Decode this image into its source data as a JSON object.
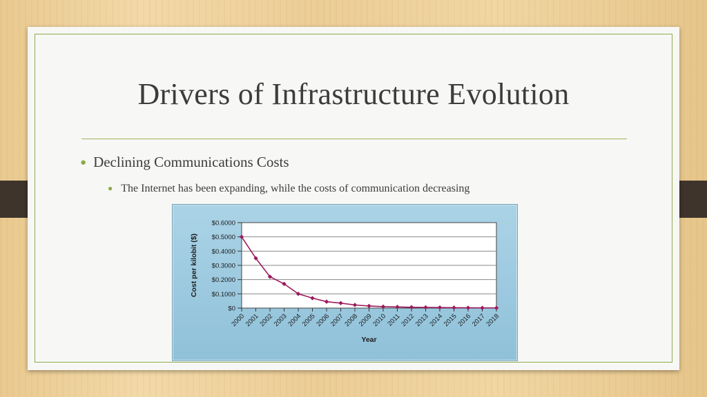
{
  "slide": {
    "title": "Drivers of Infrastructure Evolution",
    "bullets": [
      {
        "text": "Declining Communications Costs",
        "level": 1
      },
      {
        "text": "The Internet has been expanding, while the costs of communication decreasing",
        "level": 2
      }
    ]
  },
  "colors": {
    "accent": "#8daa4b",
    "series": "#9c1a5c",
    "chart_bg": "#9ccbe0"
  },
  "chart_data": {
    "type": "line",
    "title": "",
    "xlabel": "Year",
    "ylabel": "Cost per kilobit ($)",
    "x": [
      2000,
      2001,
      2002,
      2003,
      2004,
      2005,
      2006,
      2007,
      2008,
      2009,
      2010,
      2011,
      2012,
      2013,
      2014,
      2015,
      2016,
      2017,
      2018
    ],
    "x_tick_labels": [
      "2000",
      "2001",
      "2002",
      "2003",
      "2004",
      "2005",
      "2006",
      "2007",
      "2008",
      "2009",
      "2010",
      "2011",
      "2012",
      "2013",
      "2014",
      "2015",
      "2016",
      "2017",
      "2018"
    ],
    "series": [
      {
        "values": [
          0.5,
          0.35,
          0.22,
          0.17,
          0.1,
          0.07,
          0.045,
          0.035,
          0.022,
          0.015,
          0.01,
          0.008,
          0.006,
          0.005,
          0.004,
          0.003,
          0.002,
          0.0015,
          0.001
        ]
      }
    ],
    "y_ticks": [
      0,
      0.1,
      0.2,
      0.3,
      0.4,
      0.5,
      0.6
    ],
    "y_tick_labels": [
      "$0",
      "$0.1000",
      "$0.2000",
      "$0.3000",
      "$0.4000",
      "$0.5000",
      "$0.6000"
    ],
    "ylim": [
      0,
      0.6
    ],
    "grid": true,
    "legend": "none"
  }
}
